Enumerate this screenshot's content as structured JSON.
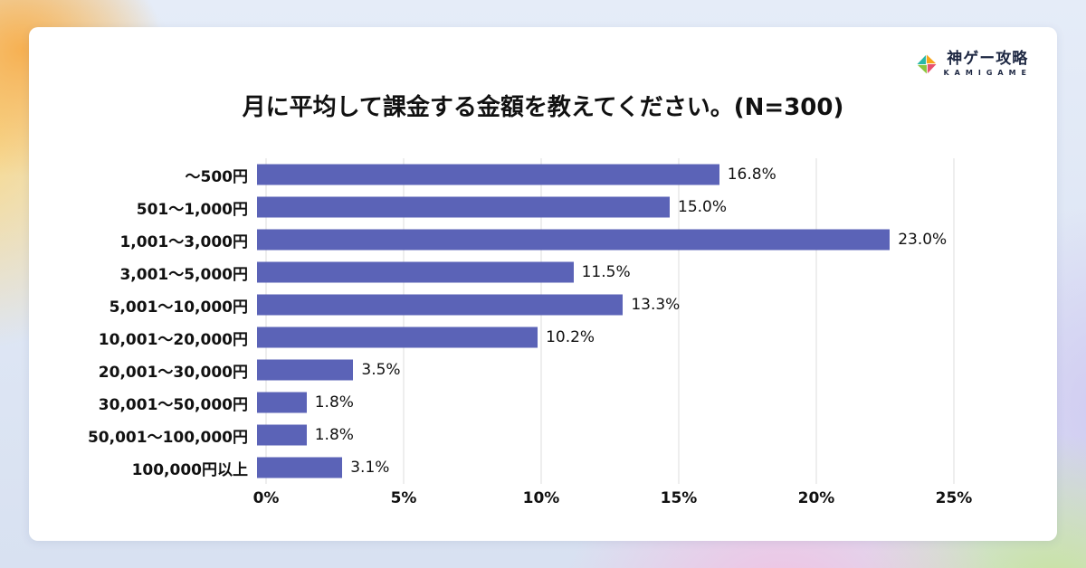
{
  "header": {
    "title": "月に平均して課金する金額を教えてください。(N=300)"
  },
  "logo": {
    "name": "神ゲー攻略",
    "subtitle": "KAMIGAME",
    "diamond_colors": [
      "#f7a61b",
      "#e8506e",
      "#8cc63f",
      "#29b8a8"
    ]
  },
  "chart_data": {
    "type": "bar",
    "orientation": "horizontal",
    "title": "月に平均して課金する金額を教えてください。(N=300)",
    "categories": [
      "～500円",
      "501～1,000円",
      "1,001～3,000円",
      "3,001～5,000円",
      "5,001～10,000円",
      "10,001～20,000円",
      "20,001～30,000円",
      "30,001～50,000円",
      "50,001～100,000円",
      "100,000円以上"
    ],
    "values": [
      16.8,
      15.0,
      23.0,
      11.5,
      13.3,
      10.2,
      3.5,
      1.8,
      1.8,
      3.1
    ],
    "value_labels": [
      "16.8%",
      "15.0%",
      "23.0%",
      "11.5%",
      "13.3%",
      "10.2%",
      "3.5%",
      "1.8%",
      "1.8%",
      "3.1%"
    ],
    "x_ticks": [
      "0%",
      "5%",
      "10%",
      "15%",
      "20%",
      "25%"
    ],
    "xlim": [
      0,
      25
    ],
    "bar_color": "#5b63b7",
    "grid": true,
    "legend": "none"
  }
}
